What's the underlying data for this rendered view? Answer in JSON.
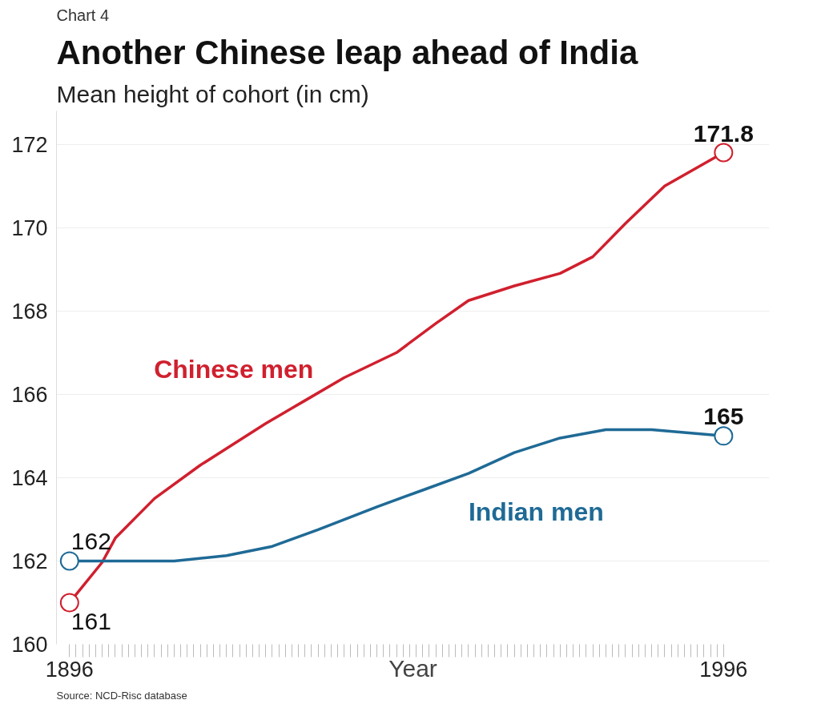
{
  "chart_data": {
    "type": "line",
    "title": "Another Chinese leap ahead of India",
    "ylabel": "Mean height of cohort (in cm)",
    "xlabel": "Year",
    "annotations": [
      "Chart 4",
      "Source: NCD-Risc database"
    ],
    "xlim": [
      1894,
      2003
    ],
    "ylim": [
      160,
      172.8
    ],
    "yticks": [
      160,
      162,
      164,
      166,
      168,
      170,
      172
    ],
    "xticks": [
      1896,
      {
        "value": 1897,
        "label": null
      },
      {
        "value": 1898,
        "label": null
      },
      {
        "value": 1899,
        "label": null
      },
      {
        "value": 1900,
        "label": null
      },
      {
        "value": 1901,
        "label": null
      },
      {
        "value": 1902,
        "label": null
      },
      {
        "value": 1903,
        "label": null
      },
      {
        "value": 1904,
        "label": null
      },
      {
        "value": 1905,
        "label": null
      },
      {
        "value": 1906,
        "label": null
      },
      {
        "value": 1907,
        "label": null
      },
      {
        "value": 1908,
        "label": null
      },
      {
        "value": 1909,
        "label": null
      },
      {
        "value": 1910,
        "label": null
      },
      {
        "value": 1911,
        "label": null
      },
      {
        "value": 1912,
        "label": null
      },
      {
        "value": 1913,
        "label": null
      },
      {
        "value": 1914,
        "label": null
      },
      {
        "value": 1915,
        "label": null
      },
      {
        "value": 1916,
        "label": null
      },
      {
        "value": 1917,
        "label": null
      },
      {
        "value": 1918,
        "label": null
      },
      {
        "value": 1919,
        "label": null
      },
      {
        "value": 1920,
        "label": null
      },
      {
        "value": 1921,
        "label": null
      },
      {
        "value": 1922,
        "label": null
      },
      {
        "value": 1923,
        "label": null
      },
      {
        "value": 1924,
        "label": null
      },
      {
        "value": 1925,
        "label": null
      },
      {
        "value": 1926,
        "label": null
      },
      {
        "value": 1927,
        "label": null
      },
      {
        "value": 1928,
        "label": null
      },
      {
        "value": 1929,
        "label": null
      },
      {
        "value": 1930,
        "label": null
      },
      {
        "value": 1931,
        "label": null
      },
      {
        "value": 1932,
        "label": null
      },
      {
        "value": 1933,
        "label": null
      },
      {
        "value": 1934,
        "label": null
      },
      {
        "value": 1935,
        "label": null
      },
      {
        "value": 1936,
        "label": null
      },
      {
        "value": 1937,
        "label": null
      },
      {
        "value": 1938,
        "label": null
      },
      {
        "value": 1939,
        "label": null
      },
      {
        "value": 1940,
        "label": null
      },
      {
        "value": 1941,
        "label": null
      },
      {
        "value": 1942,
        "label": null
      },
      {
        "value": 1943,
        "label": null
      },
      {
        "value": 1944,
        "label": null
      },
      {
        "value": 1945,
        "label": null
      },
      {
        "value": 1946,
        "label": null
      },
      {
        "value": 1947,
        "label": null
      },
      {
        "value": 1948,
        "label": null
      },
      {
        "value": 1949,
        "label": null
      },
      {
        "value": 1950,
        "label": null
      },
      {
        "value": 1951,
        "label": null
      },
      {
        "value": 1952,
        "label": null
      },
      {
        "value": 1953,
        "label": null
      },
      {
        "value": 1954,
        "label": null
      },
      {
        "value": 1955,
        "label": null
      },
      {
        "value": 1956,
        "label": null
      },
      {
        "value": 1957,
        "label": null
      },
      {
        "value": 1958,
        "label": null
      },
      {
        "value": 1959,
        "label": null
      },
      {
        "value": 1960,
        "label": null
      },
      {
        "value": 1961,
        "label": null
      },
      {
        "value": 1962,
        "label": null
      },
      {
        "value": 1963,
        "label": null
      },
      {
        "value": 1964,
        "label": null
      },
      {
        "value": 1965,
        "label": null
      },
      {
        "value": 1966,
        "label": null
      },
      {
        "value": 1967,
        "label": null
      },
      {
        "value": 1968,
        "label": null
      },
      {
        "value": 1969,
        "label": null
      },
      {
        "value": 1970,
        "label": null
      },
      {
        "value": 1971,
        "label": null
      },
      {
        "value": 1972,
        "label": null
      },
      {
        "value": 1973,
        "label": null
      },
      {
        "value": 1974,
        "label": null
      },
      {
        "value": 1975,
        "label": null
      },
      {
        "value": 1976,
        "label": null
      },
      {
        "value": 1977,
        "label": null
      },
      {
        "value": 1978,
        "label": null
      },
      {
        "value": 1979,
        "label": null
      },
      {
        "value": 1980,
        "label": null
      },
      {
        "value": 1981,
        "label": null
      },
      {
        "value": 1982,
        "label": null
      },
      {
        "value": 1983,
        "label": null
      },
      {
        "value": 1984,
        "label": null
      },
      {
        "value": 1985,
        "label": null
      },
      {
        "value": 1986,
        "label": null
      },
      {
        "value": 1987,
        "label": null
      },
      {
        "value": 1988,
        "label": null
      },
      {
        "value": 1989,
        "label": null
      },
      {
        "value": 1990,
        "label": null
      },
      {
        "value": 1991,
        "label": null
      },
      {
        "value": 1992,
        "label": null
      },
      {
        "value": 1993,
        "label": null
      },
      {
        "value": 1994,
        "label": null
      },
      {
        "value": 1995,
        "label": null
      },
      1996
    ],
    "grid": "y",
    "series": [
      {
        "name": "Chinese men",
        "color": "#d0202e",
        "x": [
          1896,
          1901,
          1903,
          1909,
          1916,
          1920,
          1926,
          1932,
          1938,
          1946,
          1952,
          1957,
          1964,
          1971,
          1976,
          1981,
          1987,
          1996
        ],
        "values": [
          161,
          161.97,
          162.55,
          163.5,
          164.3,
          164.7,
          165.3,
          165.85,
          166.4,
          167.0,
          167.7,
          168.25,
          168.6,
          168.9,
          169.3,
          170.1,
          171.0,
          171.8
        ],
        "value_labels": [
          "161",
          null,
          null,
          null,
          null,
          null,
          null,
          null,
          null,
          null,
          null,
          null,
          null,
          null,
          null,
          null,
          null,
          "171.8"
        ]
      },
      {
        "name": "Indian men",
        "color": "#1f6a96",
        "x": [
          1896,
          1912,
          1920,
          1927,
          1934,
          1943,
          1950,
          1957,
          1964,
          1971,
          1978,
          1985,
          1996
        ],
        "values": [
          162,
          162,
          162.13,
          162.35,
          162.75,
          163.3,
          163.7,
          164.1,
          164.6,
          164.95,
          165.15,
          165.15,
          165
        ],
        "value_labels": [
          "162",
          null,
          null,
          null,
          null,
          null,
          null,
          null,
          null,
          null,
          null,
          null,
          "165"
        ]
      }
    ]
  }
}
